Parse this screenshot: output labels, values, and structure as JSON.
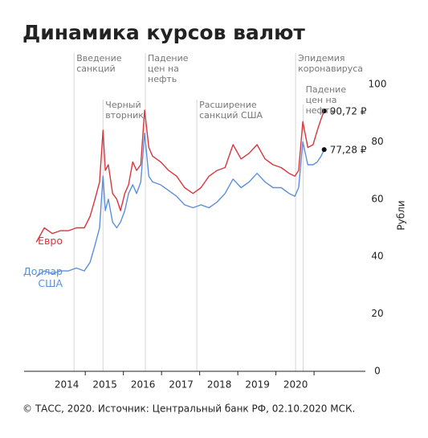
{
  "chart_data": {
    "type": "line",
    "title": "Динамика курсов валют",
    "y_label": "Рубли",
    "source": "© ТАСС, 2020. Источник: Центральный банк РФ, 02.10.2020 МСК.",
    "x": [
      2013.2,
      2013.41,
      2013.62,
      2013.83,
      2014.04,
      2014.25,
      2014.46,
      2014.61,
      2014.74,
      2014.86,
      2014.95,
      2015.01,
      2015.09,
      2015.2,
      2015.31,
      2015.41,
      2015.52,
      2015.62,
      2015.73,
      2015.83,
      2015.94,
      2016.04,
      2016.15,
      2016.25,
      2016.46,
      2016.67,
      2016.88,
      2017.09,
      2017.31,
      2017.52,
      2017.73,
      2017.94,
      2018.15,
      2018.36,
      2018.57,
      2018.78,
      2018.99,
      2019.2,
      2019.41,
      2019.62,
      2019.83,
      2019.98,
      2020.08,
      2020.19,
      2020.32,
      2020.46,
      2020.57,
      2020.67,
      2020.75
    ],
    "series": [
      {
        "name": "Евро",
        "color": "#d8363f",
        "values": [
          45,
          50,
          48,
          49,
          49,
          50,
          50,
          54,
          60,
          66,
          84,
          70,
          72,
          62,
          60,
          56,
          62,
          65,
          73,
          70,
          72,
          91,
          78,
          75,
          73,
          70,
          68,
          64,
          62,
          64,
          68,
          70,
          71,
          79,
          74,
          76,
          79,
          74,
          72,
          71,
          69,
          68,
          70,
          87,
          78,
          79,
          84,
          88,
          90.72
        ],
        "value_labels": [
          null,
          null,
          null,
          null,
          null,
          null,
          null,
          null,
          null,
          null,
          null,
          null,
          null,
          null,
          null,
          null,
          null,
          null,
          null,
          null,
          null,
          null,
          null,
          null,
          null,
          null,
          null,
          null,
          null,
          null,
          null,
          null,
          null,
          null,
          null,
          null,
          null,
          null,
          null,
          null,
          null,
          null,
          null,
          null,
          null,
          null,
          null,
          null,
          "90,72 ₽"
        ]
      },
      {
        "name": "Доллар США",
        "color": "#5c8fdb",
        "values": [
          33,
          35,
          34,
          35,
          35,
          36,
          35,
          38,
          44,
          50,
          68,
          56,
          60,
          52,
          50,
          52,
          56,
          62,
          65,
          62,
          66,
          83,
          68,
          66,
          65,
          63,
          61,
          58,
          57,
          58,
          57,
          59,
          62,
          67,
          64,
          66,
          69,
          66,
          64,
          64,
          62,
          61,
          64,
          80,
          72,
          72,
          73,
          75,
          77.28
        ],
        "value_labels": [
          null,
          null,
          null,
          null,
          null,
          null,
          null,
          null,
          null,
          null,
          null,
          null,
          null,
          null,
          null,
          null,
          null,
          null,
          null,
          null,
          null,
          null,
          null,
          null,
          null,
          null,
          null,
          null,
          null,
          null,
          null,
          null,
          null,
          null,
          null,
          null,
          null,
          null,
          null,
          null,
          null,
          null,
          null,
          null,
          null,
          null,
          null,
          null,
          "77,28 ₽"
        ]
      }
    ],
    "annotations": [
      {
        "x": 2014.19,
        "text": "Введение санкций"
      },
      {
        "x": 2014.95,
        "text": "Черный вторник"
      },
      {
        "x": 2016.06,
        "text": "Падение цен на нефть"
      },
      {
        "x": 2017.41,
        "text": "Расширение санкций США"
      },
      {
        "x": 2020.0,
        "text": "Эпидемия коронавируса"
      },
      {
        "x": 2020.2,
        "text": "Падение цен на нефть"
      }
    ],
    "xlim": [
      2012.88,
      2021.83
    ],
    "xticks": [
      2014,
      2015,
      2016,
      2017,
      2018,
      2019,
      2020
    ],
    "ylim": [
      0,
      100
    ],
    "yticks": [
      0,
      20,
      40,
      60,
      80,
      100
    ],
    "grid": false
  }
}
